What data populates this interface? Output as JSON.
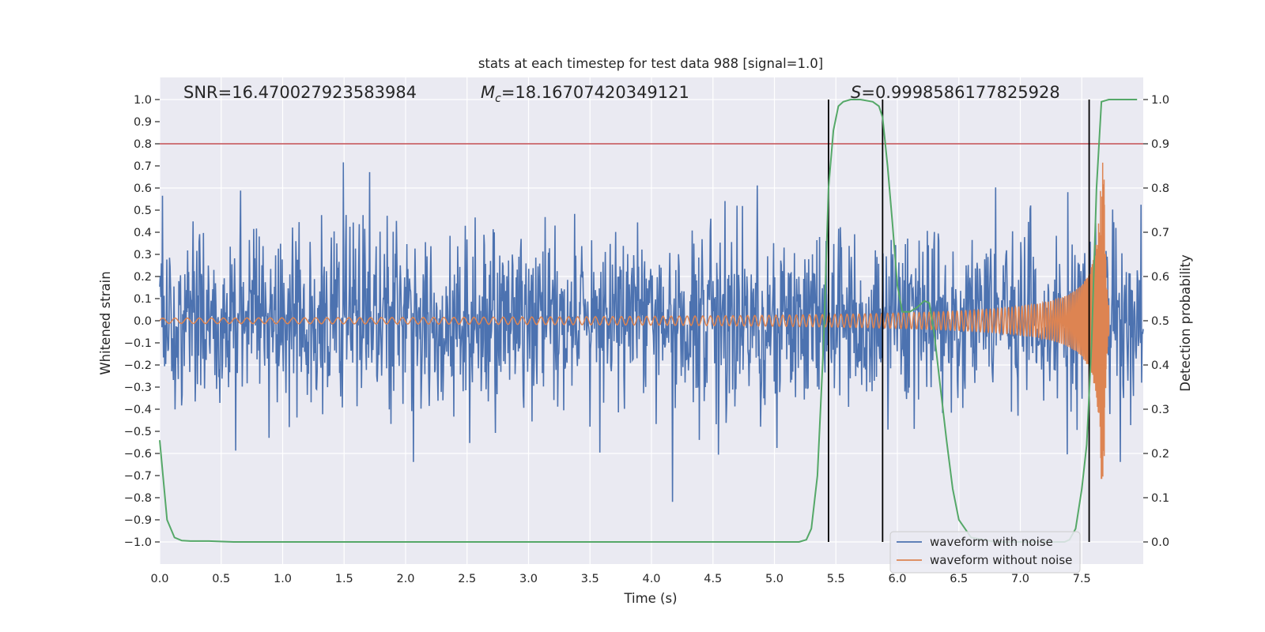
{
  "chart_data": {
    "type": "line",
    "title": "stats at each timestep for test data 988 [signal=1.0]",
    "xlabel": "Time (s)",
    "ylabel": "Whitened strain",
    "ylabel_right": "Detection probability",
    "xlim": [
      0.0,
      8.0
    ],
    "ylim": [
      -1.1,
      1.1
    ],
    "ylim_right": [
      -0.05,
      1.05
    ],
    "xticks": [
      "0.0",
      "0.5",
      "1.0",
      "1.5",
      "2.0",
      "2.5",
      "3.0",
      "3.5",
      "4.0",
      "4.5",
      "5.0",
      "5.5",
      "6.0",
      "6.5",
      "7.0",
      "7.5"
    ],
    "yticks": [
      "1.0",
      "0.9",
      "0.8",
      "0.7",
      "0.6",
      "0.5",
      "0.4",
      "0.3",
      "0.2",
      "0.1",
      "0.0",
      "−0.1",
      "−0.2",
      "−0.3",
      "−0.4",
      "−0.5",
      "−0.6",
      "−0.7",
      "−0.8",
      "−0.9",
      "−1.0"
    ],
    "yticks_right": [
      "1.0",
      "0.9",
      "0.8",
      "0.7",
      "0.6",
      "0.5",
      "0.4",
      "0.3",
      "0.2",
      "0.1",
      "0.0"
    ],
    "annotations": {
      "snr": "SNR=16.470027923583984",
      "mc_symbol": "M",
      "mc_sub": "c",
      "mc_value": "=18.16707420349121",
      "s_symbol": "S",
      "s_value": "=0.9998586177825928"
    },
    "threshold_right": 0.9,
    "vertical_lines_x": [
      5.44,
      5.88,
      7.56
    ],
    "noise": {
      "name": "waveform with noise",
      "color": "#4c72b0",
      "samples": 1800,
      "seed": 988
    },
    "signal": {
      "name": "waveform without noise",
      "color": "#dd8452",
      "merger_time": 7.68,
      "base_amplitude": 0.003,
      "peak_amplitude": 0.72
    },
    "probability": {
      "color": "#55a868",
      "x": [
        0.0,
        0.06,
        0.12,
        0.18,
        0.25,
        0.4,
        0.6,
        1.0,
        2.0,
        3.0,
        4.0,
        5.0,
        5.2,
        5.26,
        5.3,
        5.35,
        5.4,
        5.44,
        5.48,
        5.52,
        5.56,
        5.62,
        5.7,
        5.8,
        5.85,
        5.88,
        5.92,
        5.96,
        6.0,
        6.04,
        6.1,
        6.16,
        6.22,
        6.26,
        6.3,
        6.35,
        6.4,
        6.45,
        6.5,
        6.6,
        6.8,
        7.0,
        7.2,
        7.3,
        7.36,
        7.4,
        7.45,
        7.5,
        7.54,
        7.58,
        7.62,
        7.66,
        7.72,
        7.8,
        7.95
      ],
      "values": [
        0.23,
        0.05,
        0.01,
        0.003,
        0.002,
        0.002,
        0.0,
        0.0,
        0.0,
        0.0,
        0.0,
        0.0,
        0.0,
        0.005,
        0.03,
        0.15,
        0.45,
        0.8,
        0.93,
        0.985,
        0.995,
        1.0,
        1.0,
        0.995,
        0.985,
        0.96,
        0.85,
        0.72,
        0.58,
        0.52,
        0.52,
        0.53,
        0.545,
        0.54,
        0.47,
        0.35,
        0.23,
        0.12,
        0.05,
        0.01,
        0.0,
        0.0,
        0.0,
        0.0,
        0.0,
        0.005,
        0.03,
        0.12,
        0.22,
        0.45,
        0.8,
        0.995,
        1.0,
        1.0,
        1.0
      ]
    },
    "legend": {
      "position": "lower-right",
      "entries": [
        "waveform with noise",
        "waveform without noise"
      ]
    },
    "style": {
      "background": "#eaeaf2",
      "grid": "#ffffff",
      "threshold_color": "#c44e52",
      "vline_color": "#000000"
    }
  }
}
